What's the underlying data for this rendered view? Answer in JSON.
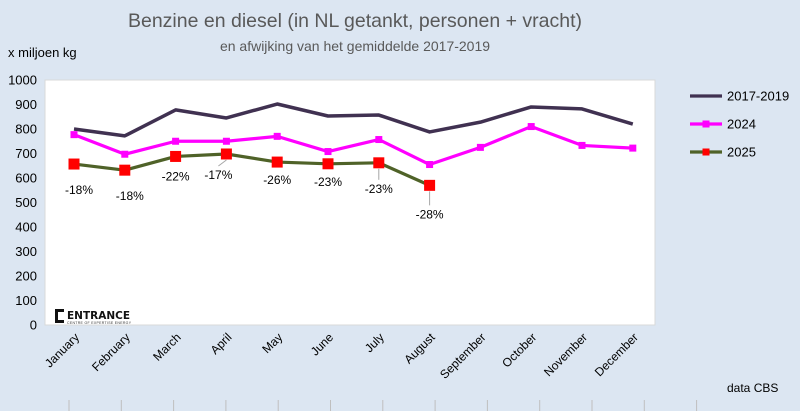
{
  "chart_data": {
    "type": "line",
    "title": "Benzine en diesel (in NL getankt, personen + vracht)",
    "subtitle": "en afwijking van het gemiddelde 2017-2019",
    "ylabel": "x miljoen kg",
    "ylim": [
      0,
      1000
    ],
    "yticks": [
      0,
      100,
      200,
      300,
      400,
      500,
      600,
      700,
      800,
      900,
      1000
    ],
    "grid": false,
    "legend_position": "right",
    "categories": [
      "January",
      "February",
      "March",
      "April",
      "May",
      "June",
      "July",
      "August",
      "September",
      "October",
      "November",
      "December"
    ],
    "series": [
      {
        "name": "2017-2019",
        "color": "#403151",
        "marker": "none",
        "marker_color": "",
        "values": [
          800,
          772,
          878,
          845,
          902,
          853,
          857,
          788,
          828,
          890,
          882,
          820
        ]
      },
      {
        "name": "2024",
        "color": "#ff00ff",
        "marker": "square",
        "marker_color": "#ff00ff",
        "values": [
          777,
          697,
          750,
          750,
          770,
          708,
          757,
          655,
          725,
          810,
          733,
          722
        ]
      },
      {
        "name": "2025",
        "color": "#4f6228",
        "marker": "square",
        "marker_color": "#ff0000",
        "values": [
          657,
          632,
          688,
          698,
          665,
          658,
          662,
          570,
          null,
          null,
          null,
          null
        ]
      }
    ],
    "annotations": [
      "-18%",
      "-18%",
      "-22%",
      "-17%",
      "-26%",
      "-23%",
      "-23%",
      "-28%"
    ],
    "source": "data CBS"
  },
  "logo": {
    "text": "ENTRANCE",
    "subtext": "CENTRE OF EXPERTISE ENERGY"
  }
}
